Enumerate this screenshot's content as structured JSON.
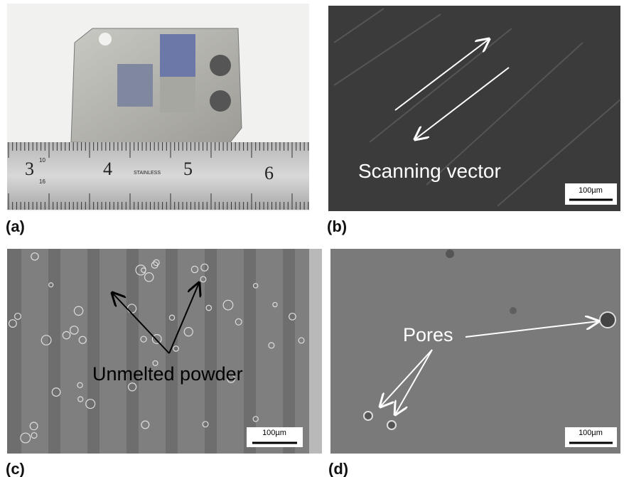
{
  "panels": [
    {
      "label": "(a)",
      "ruler_numbers": [
        "3",
        "4",
        "5",
        "6"
      ],
      "ruler_small": [
        "10",
        "16"
      ],
      "ruler_brand": "STAINLESS"
    },
    {
      "label": "(b)",
      "annotation": "Scanning vector",
      "scale_bar": "100µm"
    },
    {
      "label": "(c)",
      "annotation": "Unmelted powder",
      "scale_bar": "100µm"
    },
    {
      "label": "(d)",
      "annotation": "Pores",
      "scale_bar": "100µm"
    }
  ]
}
